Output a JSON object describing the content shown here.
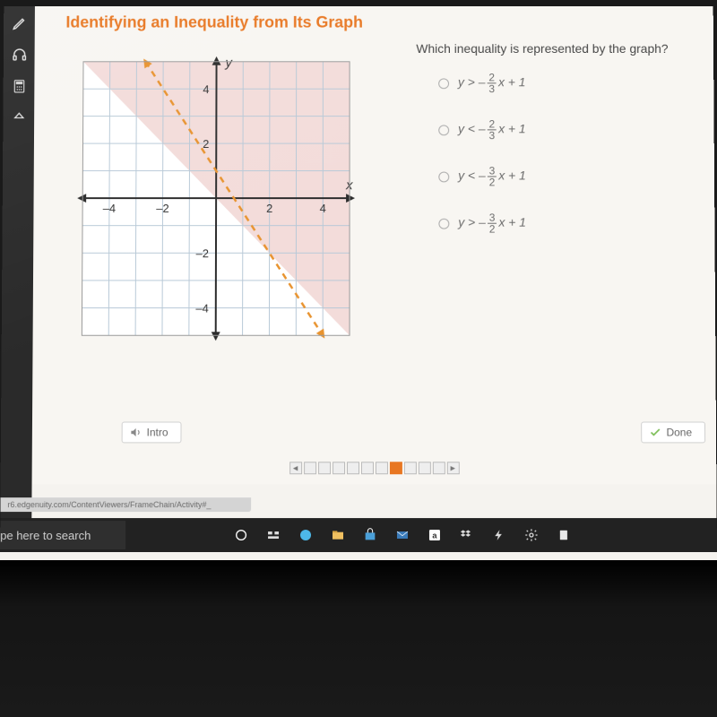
{
  "heading": "Identifying an Inequality from Its Graph",
  "question": "Which inequality is represented by the graph?",
  "options": [
    {
      "var": "y",
      "rel": ">",
      "num": "2",
      "den": "3",
      "tail": "x + 1"
    },
    {
      "var": "y",
      "rel": "<",
      "num": "2",
      "den": "3",
      "tail": "x + 1"
    },
    {
      "var": "y",
      "rel": "<",
      "num": "3",
      "den": "2",
      "tail": "x + 1"
    },
    {
      "var": "y",
      "rel": ">",
      "num": "3",
      "den": "2",
      "tail": "x + 1"
    }
  ],
  "intro_label": "Intro",
  "done_label": "Done",
  "search_placeholder": "pe here to search",
  "url_text": "r6.edgenuity.com/ContentViewers/FrameChain/Activity#_",
  "graph": {
    "type": "inequality-plot",
    "xlim": [
      -5,
      5
    ],
    "ylim": [
      -5,
      5
    ],
    "tick_step": 1,
    "x_ticks_shown": [
      -4,
      -2,
      2,
      4
    ],
    "y_ticks_shown": [
      -4,
      -2,
      2,
      4
    ],
    "x_axis_label": "x",
    "y_axis_label": "y",
    "grid_color": "#b8c9d7",
    "bg_color": "#ffffff",
    "axis_color": "#2b2b2b",
    "line": {
      "slope": -1.5,
      "intercept": 1,
      "style": "dashed",
      "width": 2.5,
      "color": "#e8932f"
    },
    "shade": {
      "region": "above",
      "color": "#f2d8d6",
      "opacity": 0.9
    },
    "arrows": true,
    "tick_label_fontsize": 13,
    "axis_label_fontsize": 15
  },
  "progress": {
    "total": 10,
    "active_index": 6
  },
  "colors": {
    "heading": "#e87722",
    "panel_bg": "#2a2a2a",
    "content_bg": "#f8f6f2",
    "button_bg": "#ffffff",
    "button_border": "#d0d0d0",
    "done_check": "#7fbf5a"
  },
  "taskbar_icons": [
    "cortana-circle",
    "task-view",
    "edge",
    "file-explorer",
    "store",
    "mail",
    "amazon",
    "dropbox",
    "power",
    "settings-gear",
    "notes"
  ]
}
